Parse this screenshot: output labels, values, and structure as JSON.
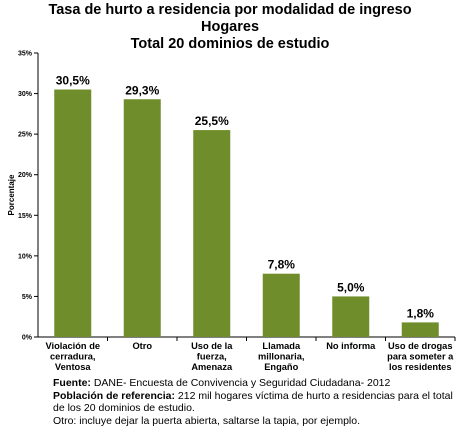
{
  "title_lines": [
    "Tasa de hurto a residencia por modalidad de ingreso",
    "Hogares",
    "Total 20 dominios de estudio"
  ],
  "chart_data": {
    "type": "bar",
    "title": "Tasa de hurto a residencia por modalidad de ingreso Hogares Total 20 dominios de estudio",
    "ylabel": "Porcentaje",
    "xlabel": "",
    "ylim": [
      0,
      35
    ],
    "yticks": [
      0,
      5,
      10,
      15,
      20,
      25,
      30,
      35
    ],
    "ytick_labels": [
      "0%",
      "5%",
      "10%",
      "15%",
      "20%",
      "25%",
      "30%",
      "35%"
    ],
    "grid": false,
    "legend": "none",
    "bar_color": "#6f8e2b",
    "categories": [
      [
        "Violación de",
        "cerradura,",
        "Ventosa"
      ],
      [
        "Otro"
      ],
      [
        "Uso de la",
        "fuerza,",
        "Amenaza"
      ],
      [
        "Llamada",
        "millonaria,",
        "Engaño"
      ],
      [
        "No informa"
      ],
      [
        "Uso de drogas",
        "para someter a",
        "los residentes"
      ]
    ],
    "values": [
      30.5,
      29.3,
      25.5,
      7.8,
      5.0,
      1.8
    ],
    "data_labels": [
      "30,5%",
      "29,3%",
      "25,5%",
      "7,8%",
      "5,0%",
      "1,8%"
    ]
  },
  "notes": {
    "fuente_label": "Fuente:",
    "fuente_text": " DANE- Encuesta de Convivencia y Seguridad Ciudadana- 2012",
    "poblacion_label": "Población de referencia:",
    "poblacion_text": " 212 mil hogares víctima de hurto a residencias para el total de los  20 dominios de estudio.",
    "otro_text": "Otro: incluye dejar la puerta abierta, saltarse la tapia, por ejemplo."
  }
}
